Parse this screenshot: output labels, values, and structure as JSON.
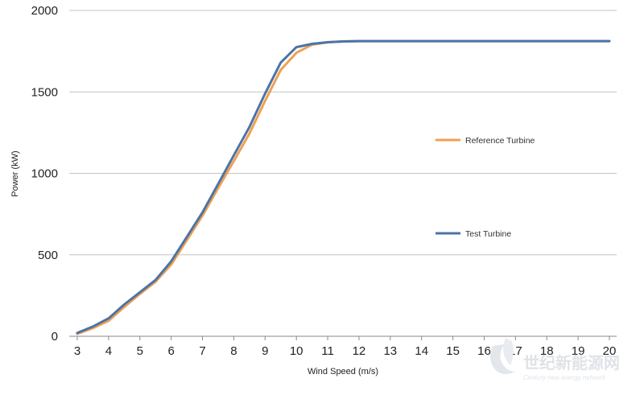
{
  "chart_data": {
    "type": "line",
    "xlabel": "Wind Speed (m/s)",
    "ylabel": "Power (kW)",
    "xlim": [
      3,
      20
    ],
    "ylim": [
      0,
      2000
    ],
    "x_ticks": [
      3,
      4,
      5,
      6,
      7,
      8,
      9,
      10,
      11,
      12,
      13,
      14,
      15,
      16,
      17,
      18,
      19,
      20
    ],
    "y_ticks": [
      0,
      500,
      1000,
      1500,
      2000
    ],
    "grid": "horizontal",
    "legend": "right",
    "series": [
      {
        "name": "Reference Turbine",
        "color": "#f0a050",
        "x": [
          3,
          3.5,
          4,
          4.5,
          5,
          5.5,
          6,
          6.5,
          7,
          7.5,
          8,
          8.5,
          9,
          9.5,
          10,
          10.5,
          11,
          11.5,
          12,
          13,
          14,
          15,
          16,
          17,
          18,
          19,
          20
        ],
        "y": [
          15,
          50,
          95,
          180,
          260,
          335,
          440,
          590,
          740,
          910,
          1075,
          1245,
          1445,
          1635,
          1740,
          1790,
          1805,
          1810,
          1812,
          1812,
          1812,
          1812,
          1812,
          1812,
          1812,
          1812,
          1812
        ]
      },
      {
        "name": "Test Turbine",
        "color": "#4a74a8",
        "x": [
          3,
          3.5,
          4,
          4.5,
          5,
          5.5,
          6,
          6.5,
          7,
          7.5,
          8,
          8.5,
          9,
          9.5,
          10,
          10.5,
          11,
          11.5,
          12,
          13,
          14,
          15,
          16,
          17,
          18,
          19,
          20
        ],
        "y": [
          20,
          60,
          110,
          195,
          270,
          345,
          460,
          610,
          760,
          935,
          1110,
          1285,
          1490,
          1680,
          1775,
          1795,
          1805,
          1810,
          1812,
          1812,
          1812,
          1812,
          1812,
          1812,
          1812,
          1812,
          1812
        ]
      }
    ]
  },
  "watermark": {
    "logo_text": "世纪新能源网",
    "sub_text": "Century new energy network"
  }
}
